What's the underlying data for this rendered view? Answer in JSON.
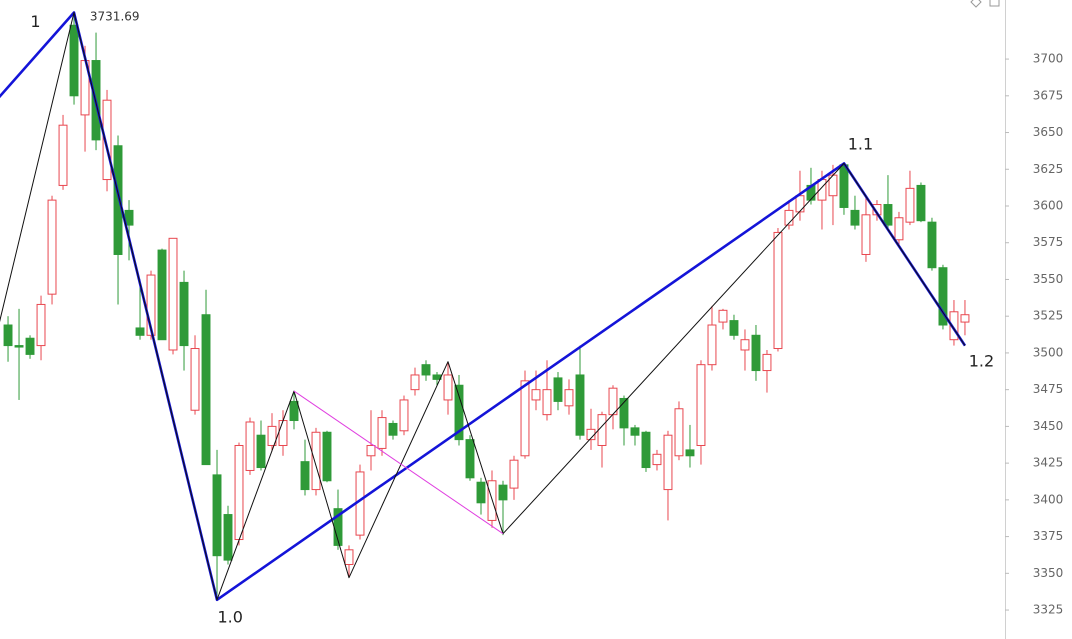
{
  "chart_data": {
    "type": "candlestick",
    "xlim": [
      -0.73,
      90.64
    ],
    "ylim": [
      3305.3,
      3740.2
    ],
    "yticks": [
      3325,
      3350,
      3375,
      3400,
      3425,
      3450,
      3475,
      3500,
      3525,
      3550,
      3575,
      3600,
      3625,
      3650,
      3675,
      3700
    ],
    "up_color": "#e8474f",
    "down_color": "#2f9a38",
    "open": [
      3519,
      3505,
      3510,
      3505,
      3540,
      3614,
      3723,
      3662,
      3699,
      3618,
      3641,
      3597,
      3517,
      3512,
      3570,
      3502,
      3548,
      3461,
      3526,
      3417,
      3390,
      3373,
      3420,
      3444,
      3437,
      3437,
      3467,
      3426,
      3407,
      3446,
      3394,
      3356,
      3376,
      3430,
      3435,
      3452,
      3447,
      3475,
      3492,
      3485,
      3468,
      3478,
      3441,
      3412,
      3386,
      3410,
      3408,
      3430,
      3468,
      3458,
      3483,
      3464,
      3485,
      3441,
      3437,
      3458,
      3469,
      3449,
      3446,
      3424,
      3407,
      3430,
      3434,
      3437,
      3492,
      3521,
      3522,
      3502,
      3512,
      3488,
      3503,
      3587,
      3596,
      3614,
      3604,
      3607,
      3628,
      3597,
      3567,
      3594,
      3601,
      3577,
      3589,
      3614,
      3589,
      3558,
      3509,
      3521
    ],
    "high": [
      3525,
      3530,
      3512,
      3539,
      3607,
      3662,
      3731.69,
      3709,
      3718,
      3679,
      3648,
      3604,
      3550,
      3556,
      3571,
      3578,
      3556,
      3512,
      3543,
      3434,
      3396,
      3439,
      3456,
      3454,
      3459,
      3461,
      3474,
      3441,
      3449,
      3447,
      3407,
      3369,
      3424,
      3461,
      3461,
      3454,
      3471,
      3490,
      3495,
      3487,
      3494,
      3485,
      3444,
      3415,
      3420,
      3413,
      3430,
      3488,
      3488,
      3495,
      3487,
      3482,
      3505,
      3462,
      3460,
      3478,
      3471,
      3451,
      3447,
      3434,
      3447,
      3467,
      3451,
      3495,
      3532,
      3530,
      3526,
      3516,
      3519,
      3502,
      3585,
      3604,
      3624,
      3626,
      3624,
      3628,
      3629,
      3607,
      3607,
      3604,
      3621,
      3596,
      3624,
      3616,
      3592,
      3560,
      3536,
      3536
    ],
    "low": [
      3494,
      3468,
      3496,
      3495,
      3533,
      3611,
      3669,
      3637,
      3638,
      3610,
      3533,
      3563,
      3509,
      3509,
      3509,
      3499,
      3488,
      3458,
      3424,
      3332,
      3356,
      3369,
      3417,
      3420,
      3433,
      3430,
      3448,
      3403,
      3403,
      3412,
      3366,
      3347,
      3373,
      3420,
      3430,
      3441,
      3444,
      3471,
      3481,
      3478,
      3458,
      3437,
      3413,
      3390,
      3381,
      3376,
      3400,
      3428,
      3461,
      3454,
      3461,
      3458,
      3441,
      3434,
      3422,
      3448,
      3437,
      3437,
      3419,
      3420,
      3386,
      3427,
      3422,
      3424,
      3488,
      3516,
      3509,
      3488,
      3481,
      3473,
      3501,
      3584,
      3590,
      3601,
      3584,
      3587,
      3594,
      3584,
      3562,
      3590,
      3584,
      3573,
      3587,
      3589,
      3556,
      3516,
      3505,
      3512
    ],
    "close": [
      3505,
      3504,
      3499,
      3533,
      3604,
      3655,
      3675,
      3699,
      3645,
      3672,
      3567,
      3587,
      3512,
      3553,
      3509,
      3578,
      3505,
      3503,
      3424,
      3362,
      3359,
      3437,
      3453,
      3422,
      3450,
      3454,
      3454,
      3407,
      3446,
      3413,
      3369,
      3366,
      3419,
      3437,
      3456,
      3444,
      3468,
      3485,
      3485,
      3482,
      3485,
      3441,
      3415,
      3398,
      3413,
      3400,
      3427,
      3481,
      3475,
      3475,
      3467,
      3475,
      3444,
      3448,
      3458,
      3476,
      3449,
      3444,
      3422,
      3431,
      3444,
      3462,
      3430,
      3492,
      3519,
      3529,
      3512,
      3509,
      3488,
      3499,
      3582,
      3597,
      3607,
      3604,
      3618,
      3621,
      3599,
      3587,
      3594,
      3601,
      3587,
      3592,
      3612,
      3590,
      3558,
      3519,
      3528,
      3526
    ],
    "lines": [
      {
        "color": "#1414d8",
        "width": 2.6,
        "x": [
          -2,
          6,
          19,
          76,
          87
        ],
        "y": [
          3664,
          3731.69,
          3332,
          3629,
          3505
        ]
      },
      {
        "color": "#111111",
        "width": 1,
        "x": [
          -1,
          6,
          19,
          26,
          31,
          40,
          45,
          76,
          87
        ],
        "y": [
          3514,
          3731.69,
          3332,
          3474,
          3347,
          3494,
          3377,
          3629,
          3505
        ]
      },
      {
        "color": "#e040e0",
        "width": 1,
        "x": [
          26,
          45
        ],
        "y": [
          3474,
          3377
        ]
      }
    ],
    "annotations": [
      {
        "text": "1",
        "x": 2.5,
        "y": 3725
      },
      {
        "text": "3731.69",
        "x": 9.7,
        "y": 3728.6
      },
      {
        "text": "1.0",
        "x": 20.2,
        "y": 3319.6
      },
      {
        "text": "1.1",
        "x": 77.5,
        "y": 3641.5
      },
      {
        "text": "1.2",
        "x": 88.5,
        "y": 3493.8
      }
    ]
  }
}
